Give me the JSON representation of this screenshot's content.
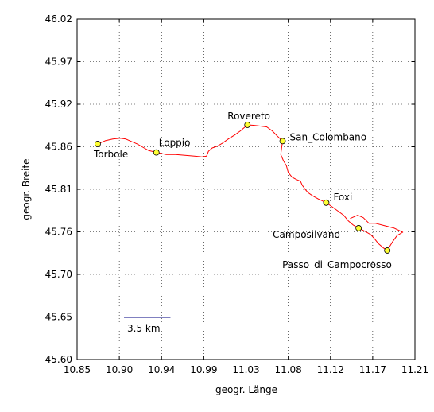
{
  "chart_data": {
    "type": "line",
    "xlabel": "geogr. Länge",
    "ylabel": "geogr. Breite",
    "xlim": [
      10.85,
      11.21
    ],
    "ylim": [
      45.6,
      46.02
    ],
    "grid": true,
    "x_ticks": [
      "10.85",
      "10.90",
      "10.94",
      "10.99",
      "11.03",
      "11.08",
      "11.12",
      "11.17",
      "11.21"
    ],
    "y_ticks": [
      "45.60",
      "45.65",
      "45.70",
      "45.76",
      "45.81",
      "45.86",
      "45.92",
      "45.97",
      "46.02"
    ],
    "scale_bar": {
      "label": "3.5 km",
      "x_start": 10.9,
      "x_end": 10.9495,
      "y": 45.652,
      "color": "#000080"
    },
    "route_color": "#ff0000",
    "marker_color": "#ffff33",
    "places": [
      {
        "name": "Torbole",
        "lon": 10.872,
        "lat": 45.866
      },
      {
        "name": "Loppio",
        "lon": 10.9345,
        "lat": 45.8555
      },
      {
        "name": "Rovereto",
        "lon": 11.0315,
        "lat": 45.8895
      },
      {
        "name": "San_Colombano",
        "lon": 11.069,
        "lat": 45.8695
      },
      {
        "name": "Foxi",
        "lon": 11.1155,
        "lat": 45.7935
      },
      {
        "name": "Camposilvano",
        "lon": 11.15,
        "lat": 45.762
      },
      {
        "name": "Passo_di_Campocrosso",
        "lon": 11.1805,
        "lat": 45.7345
      }
    ],
    "route": [
      [
        10.872,
        45.866
      ],
      [
        10.88,
        45.87
      ],
      [
        10.888,
        45.872
      ],
      [
        10.896,
        45.873
      ],
      [
        10.902,
        45.872
      ],
      [
        10.908,
        45.869
      ],
      [
        10.914,
        45.866
      ],
      [
        10.92,
        45.862
      ],
      [
        10.926,
        45.858
      ],
      [
        10.9345,
        45.8555
      ],
      [
        10.945,
        45.853
      ],
      [
        10.955,
        45.853
      ],
      [
        10.965,
        45.852
      ],
      [
        10.975,
        45.851
      ],
      [
        10.983,
        45.85
      ],
      [
        10.988,
        45.851
      ],
      [
        10.99,
        45.857
      ],
      [
        10.994,
        45.861
      ],
      [
        10.999,
        45.863
      ],
      [
        11.005,
        45.867
      ],
      [
        11.011,
        45.872
      ],
      [
        11.018,
        45.877
      ],
      [
        11.024,
        45.882
      ],
      [
        11.0315,
        45.8895
      ],
      [
        11.038,
        45.889
      ],
      [
        11.045,
        45.888
      ],
      [
        11.052,
        45.887
      ],
      [
        11.058,
        45.882
      ],
      [
        11.063,
        45.876
      ],
      [
        11.069,
        45.8695
      ],
      [
        11.068,
        45.862
      ],
      [
        11.067,
        45.853
      ],
      [
        11.07,
        45.845
      ],
      [
        11.073,
        45.839
      ],
      [
        11.075,
        45.831
      ],
      [
        11.079,
        45.825
      ],
      [
        11.084,
        45.822
      ],
      [
        11.088,
        45.82
      ],
      [
        11.09,
        45.815
      ],
      [
        11.093,
        45.81
      ],
      [
        11.096,
        45.806
      ],
      [
        11.101,
        45.802
      ],
      [
        11.107,
        45.798
      ],
      [
        11.1155,
        45.7935
      ],
      [
        11.121,
        45.789
      ],
      [
        11.127,
        45.784
      ],
      [
        11.134,
        45.778
      ],
      [
        11.139,
        45.771
      ],
      [
        11.144,
        45.766
      ],
      [
        11.15,
        45.762
      ],
      [
        11.157,
        45.758
      ],
      [
        11.163,
        45.754
      ],
      [
        11.167,
        45.749
      ],
      [
        11.171,
        45.743
      ],
      [
        11.176,
        45.738
      ],
      [
        11.1805,
        45.7345
      ],
      [
        11.186,
        45.745
      ],
      [
        11.191,
        45.753
      ],
      [
        11.197,
        45.757
      ],
      [
        11.188,
        45.762
      ],
      [
        11.178,
        45.765
      ],
      [
        11.168,
        45.768
      ],
      [
        11.161,
        45.768
      ],
      [
        11.155,
        45.775
      ],
      [
        11.149,
        45.778
      ],
      [
        11.141,
        45.774
      ]
    ]
  }
}
